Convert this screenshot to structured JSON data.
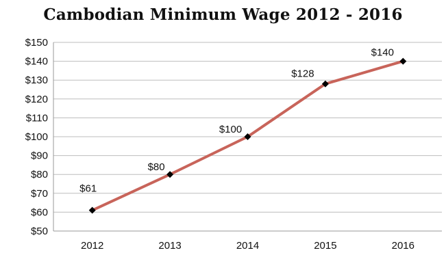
{
  "chart_data": {
    "type": "line",
    "title": "Cambodian Minimum Wage 2012 - 2016",
    "xlabel": "",
    "ylabel": "",
    "categories": [
      "2012",
      "2013",
      "2014",
      "2015",
      "2016"
    ],
    "series": [
      {
        "values": [
          61,
          80,
          100,
          128,
          140
        ],
        "data_labels": [
          "$61",
          "$80",
          "$100",
          "$128",
          "$140"
        ],
        "color": "#c8645a",
        "marker": "diamond",
        "marker_color": "#000000"
      }
    ],
    "ylim": [
      50,
      150
    ],
    "yticks": [
      50,
      60,
      70,
      80,
      90,
      100,
      110,
      120,
      130,
      140,
      150
    ],
    "ytick_labels": [
      "$50",
      "$60",
      "$70",
      "$80",
      "$90",
      "$100",
      "$110",
      "$120",
      "$130",
      "$140",
      "$150"
    ],
    "grid": true,
    "gridline_color": "#bdbdbd",
    "legend": "none"
  }
}
